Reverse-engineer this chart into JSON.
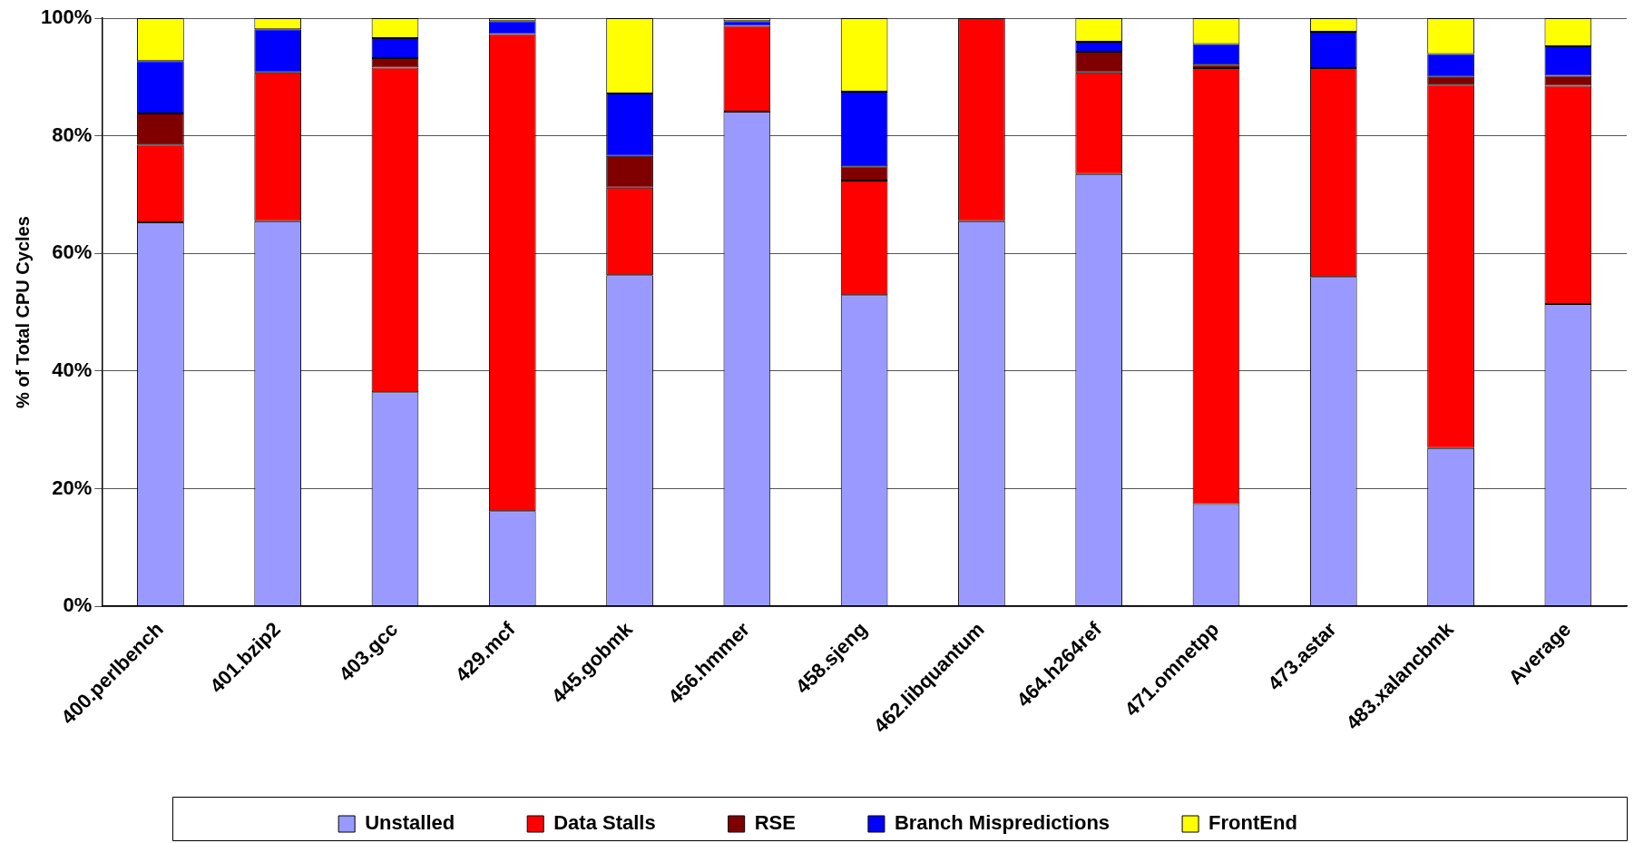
{
  "chart_data": {
    "type": "bar",
    "stacked": true,
    "ylabel": "% of Total CPU Cycles",
    "categories": [
      "400.perlbench",
      "401.bzip2",
      "403.gcc",
      "429.mcf",
      "445.gobmk",
      "456.hmmer",
      "458.sjeng",
      "462.libquantum",
      "464.h264ref",
      "471.omnetpp",
      "473.astar",
      "483.xalancbmk",
      "Average"
    ],
    "series": [
      {
        "name": "Unstalled",
        "color": "#9999ff",
        "values": [
          65.3,
          65.5,
          36.4,
          16.2,
          56.3,
          84.1,
          52.9,
          65.5,
          73.5,
          17.4,
          56.0,
          26.9,
          51.4
        ]
      },
      {
        "name": "Data Stalls",
        "color": "#ff0000",
        "values": [
          13.2,
          25.3,
          55.2,
          81.1,
          14.9,
          14.6,
          19.5,
          34.5,
          17.3,
          74.1,
          35.5,
          61.8,
          37.1
        ]
      },
      {
        "name": "RSE",
        "color": "#800000",
        "values": [
          5.3,
          0,
          1.6,
          0,
          5.4,
          0,
          2.4,
          0,
          3.5,
          0.6,
          0,
          1.3,
          1.7
        ]
      },
      {
        "name": "Branch Mispredictions",
        "color": "#0000ff",
        "values": [
          8.9,
          7.3,
          3.4,
          2.2,
          10.6,
          0.8,
          12.7,
          0,
          1.7,
          3.5,
          6.2,
          3.9,
          5.0
        ]
      },
      {
        "name": "FrontEnd",
        "color": "#ffff00",
        "values": [
          7.3,
          1.9,
          3.4,
          0.5,
          12.8,
          0.5,
          12.5,
          0,
          4.0,
          4.4,
          2.3,
          6.1,
          4.8
        ]
      }
    ],
    "ylim": [
      0,
      100
    ],
    "yticks": [
      {
        "value": 0,
        "label": "0%"
      },
      {
        "value": 20,
        "label": "20%"
      },
      {
        "value": 40,
        "label": "40%"
      },
      {
        "value": 60,
        "label": "60%"
      },
      {
        "value": 80,
        "label": "80%"
      },
      {
        "value": 100,
        "label": "100%"
      }
    ],
    "grid": "y",
    "legend": "bottom"
  }
}
